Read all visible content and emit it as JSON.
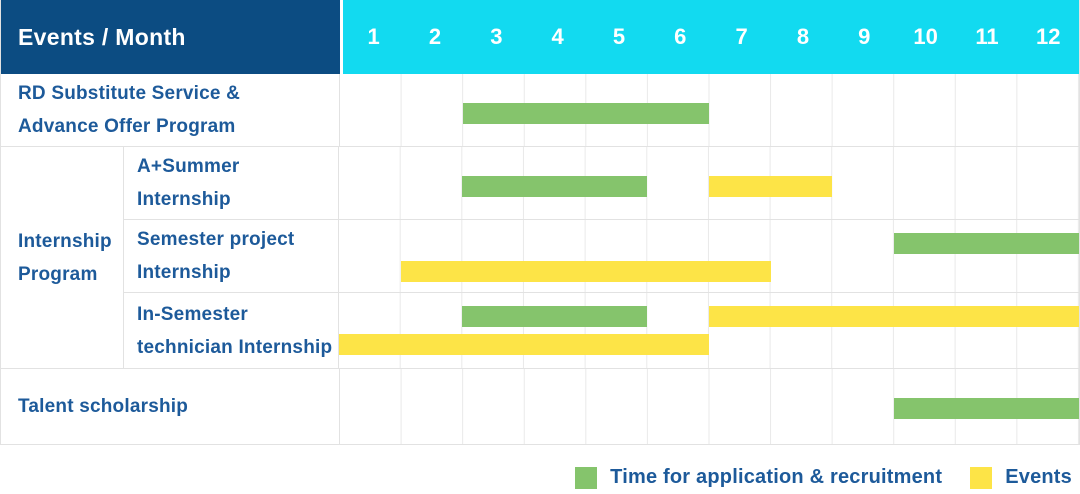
{
  "header": {
    "label": "Events / Month",
    "months": [
      "1",
      "2",
      "3",
      "4",
      "5",
      "6",
      "7",
      "8",
      "9",
      "10",
      "11",
      "12"
    ]
  },
  "group_label": {
    "label": "Internship Program",
    "lines": [
      "Internship",
      "Program"
    ]
  },
  "legend": {
    "application": "Time for application & recruitment",
    "events": "Events"
  },
  "colors": {
    "navy": "#0c4c82",
    "cyan": "#12daf0",
    "green": "#85c46c",
    "yellow": "#fde447",
    "text_blue": "#1d5a9a",
    "grid": "#e9e9e9",
    "border": "#e2e2e2"
  },
  "chart_data": {
    "type": "table",
    "subtype": "gantt",
    "title": "Events / Month",
    "x": {
      "label": "Month",
      "ticks": [
        1,
        2,
        3,
        4,
        5,
        6,
        7,
        8,
        9,
        10,
        11,
        12
      ],
      "range": [
        1,
        12
      ]
    },
    "legend": [
      {
        "name": "Time for application & recruitment",
        "color": "#85c46c"
      },
      {
        "name": "Events",
        "color": "#fde447"
      }
    ],
    "rows": [
      {
        "group": "",
        "label": "RD Substitute Service & Advance Offer Program",
        "lines": [
          "RD Substitute Service &",
          "Advance Offer Program"
        ],
        "bars": [
          {
            "type": "application",
            "start": 3,
            "end": 6,
            "lane": "center"
          }
        ]
      },
      {
        "group": "Internship Program",
        "label": "A+Summer Internship",
        "lines": [
          "A+Summer",
          "Internship"
        ],
        "bars": [
          {
            "type": "application",
            "start": 3,
            "end": 5,
            "lane": "center"
          },
          {
            "type": "events",
            "start": 7,
            "end": 8,
            "lane": "center"
          }
        ]
      },
      {
        "group": "Internship Program",
        "label": "Semester project Internship",
        "lines": [
          "Semester project",
          "Internship"
        ],
        "bars": [
          {
            "type": "application",
            "start": 10,
            "end": 12,
            "lane": "top"
          },
          {
            "type": "events",
            "start": 2,
            "end": 7,
            "lane": "bottom"
          }
        ]
      },
      {
        "group": "Internship Program",
        "label": "In-Semester technician Internship",
        "lines": [
          "In-Semester",
          "technician Internship"
        ],
        "bars": [
          {
            "type": "application",
            "start": 3,
            "end": 5,
            "lane": "top"
          },
          {
            "type": "events",
            "start": 7,
            "end": 12,
            "lane": "top"
          },
          {
            "type": "events",
            "start": 1,
            "end": 6,
            "lane": "bottom"
          }
        ]
      },
      {
        "group": "",
        "label": "Talent scholarship",
        "lines": [
          "Talent scholarship"
        ],
        "bars": [
          {
            "type": "application",
            "start": 10,
            "end": 12,
            "lane": "center"
          }
        ]
      }
    ]
  }
}
